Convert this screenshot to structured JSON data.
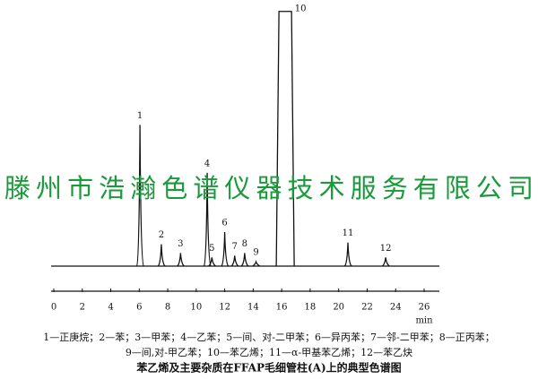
{
  "chart_data": {
    "type": "chromatogram",
    "categories": [
      "1",
      "2",
      "3",
      "4",
      "5",
      "6",
      "7",
      "8",
      "9",
      "10",
      "11",
      "12"
    ],
    "x": [
      6.05,
      7.55,
      8.9,
      10.77,
      11.1,
      12.0,
      12.7,
      13.4,
      14.2,
      16.25,
      20.65,
      23.3
    ],
    "values": [
      162,
      25,
      15,
      107,
      10,
      39,
      12,
      15,
      5,
      292,
      27,
      10
    ],
    "ylim": [
      0,
      300
    ],
    "xlim": [
      0,
      26
    ],
    "xticks": [
      0,
      2,
      4,
      6,
      8,
      10,
      12,
      14,
      16,
      18,
      20,
      22,
      24,
      26
    ],
    "xlabel": "min",
    "color": "#111111",
    "legend_lines": [
      "1—正庚烷；2—苯；3—甲苯；4—乙苯；5—间、对-二甲苯；6—异丙苯；7—邻-二甲苯；8—正丙苯；",
      "9—间,对-甲乙苯；10—苯乙烯；11—α-甲基苯乙烯；12—苯乙炔"
    ],
    "title": "苯乙烯及主要杂质在FFAP毛细管柱(A)上的典型色谱图",
    "watermark": "滕州市浩瀚色谱仪器技术服务有限公司"
  }
}
